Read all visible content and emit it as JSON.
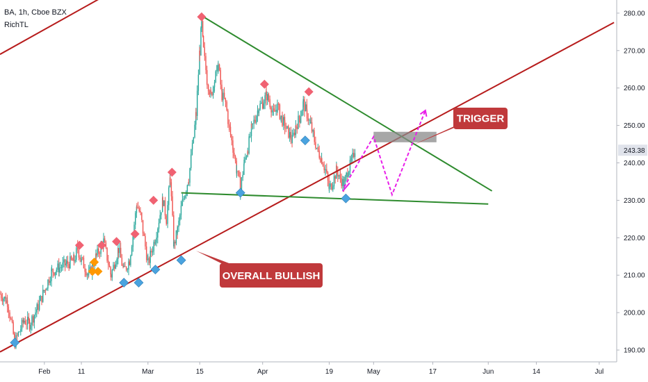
{
  "header": {
    "symbol_line": "BA, 1h, Cboe BZX",
    "indicator": "RichTL"
  },
  "colors": {
    "up": "#26a69a",
    "down": "#ef5350",
    "red_line": "#b71c1c",
    "green_line": "#2e8b2e",
    "magenta": "#e91ee9",
    "pivot_high": "#f06272",
    "pivot_low": "#4aa3df",
    "pivot_mid": "#ff9800",
    "callout": "#c0393b",
    "zone": "#8a8a8a"
  },
  "chart_data": {
    "type": "candlestick",
    "instrument": "BA",
    "interval": "1h",
    "exchange": "Cboe BZX",
    "y_axis": {
      "ticks": [
        190,
        200,
        210,
        220,
        230,
        240,
        250,
        260,
        270,
        280
      ],
      "ylim": [
        187.5,
        284
      ],
      "labels": [
        "190.00",
        "200.00",
        "210.00",
        "220.00",
        "230.00",
        "240.00",
        "250.00",
        "260.00",
        "270.00",
        "280.00"
      ]
    },
    "x_axis": {
      "labels": [
        "Feb",
        "11",
        "Mar",
        "15",
        "Apr",
        "19",
        "May",
        "17",
        "Jun",
        "14",
        "Jul"
      ],
      "label_days": [
        32,
        42,
        60,
        74,
        91,
        109,
        121,
        137,
        152,
        165,
        182
      ],
      "xlim": [
        20,
        186
      ]
    },
    "last_price": {
      "value": 243.38,
      "label": "243.38"
    },
    "price_path": [
      [
        20.0,
        205
      ],
      [
        22.0,
        203
      ],
      [
        24.0,
        192
      ],
      [
        26.5,
        198
      ],
      [
        28.0,
        197
      ],
      [
        30.0,
        201
      ],
      [
        32.0,
        206
      ],
      [
        34.0,
        211
      ],
      [
        36.0,
        212
      ],
      [
        38.0,
        213
      ],
      [
        40.0,
        214
      ],
      [
        41.0,
        217
      ],
      [
        42.0,
        214
      ],
      [
        44.0,
        210
      ],
      [
        46.0,
        215
      ],
      [
        48.0,
        219
      ],
      [
        50.0,
        210
      ],
      [
        52.0,
        217
      ],
      [
        53.5,
        211
      ],
      [
        55.0,
        214
      ],
      [
        57.0,
        229
      ],
      [
        58.0,
        226
      ],
      [
        60.0,
        213
      ],
      [
        62.0,
        220
      ],
      [
        64.0,
        230
      ],
      [
        65.0,
        225
      ],
      [
        66.0,
        236
      ],
      [
        67.0,
        218
      ],
      [
        68.0,
        222
      ],
      [
        69.0,
        228
      ],
      [
        70.0,
        232
      ],
      [
        71.0,
        236
      ],
      [
        72.0,
        244
      ],
      [
        73.0,
        253
      ],
      [
        74.0,
        270
      ],
      [
        74.5,
        277
      ],
      [
        75.0,
        270
      ],
      [
        76.0,
        262
      ],
      [
        77.0,
        258
      ],
      [
        78.0,
        262
      ],
      [
        79.0,
        266
      ],
      [
        80.0,
        258
      ],
      [
        81.0,
        256
      ],
      [
        82.0,
        249
      ],
      [
        83.0,
        244
      ],
      [
        84.0,
        238
      ],
      [
        85.0,
        233
      ],
      [
        86.0,
        240
      ],
      [
        87.0,
        244
      ],
      [
        88.0,
        249
      ],
      [
        89.0,
        252
      ],
      [
        90.0,
        255
      ],
      [
        91.0,
        256
      ],
      [
        92.0,
        258
      ],
      [
        93.0,
        256
      ],
      [
        94.0,
        253
      ],
      [
        95.0,
        255
      ],
      [
        96.0,
        252
      ],
      [
        97.0,
        250
      ],
      [
        98.0,
        248
      ],
      [
        99.0,
        246
      ],
      [
        100.0,
        250
      ],
      [
        101.0,
        252
      ],
      [
        102.0,
        256
      ],
      [
        103.0,
        253
      ],
      [
        104.0,
        250
      ],
      [
        105.0,
        246
      ],
      [
        106.0,
        243
      ],
      [
        107.0,
        241
      ],
      [
        108.0,
        238
      ],
      [
        109.0,
        233
      ],
      [
        110.0,
        235
      ],
      [
        111.0,
        238
      ],
      [
        112.0,
        236
      ],
      [
        113.0,
        234
      ],
      [
        114.0,
        238
      ],
      [
        115.0,
        240
      ],
      [
        116.0,
        244
      ]
    ],
    "pivots": [
      {
        "kind": "high",
        "day": 74.5,
        "price": 279
      },
      {
        "kind": "high",
        "day": 91.5,
        "price": 261
      },
      {
        "kind": "high",
        "day": 103.5,
        "price": 259
      },
      {
        "kind": "high",
        "day": 66.5,
        "price": 237.5
      },
      {
        "kind": "high",
        "day": 61.5,
        "price": 230
      },
      {
        "kind": "high",
        "day": 56.5,
        "price": 221
      },
      {
        "kind": "high",
        "day": 51.5,
        "price": 219
      },
      {
        "kind": "high",
        "day": 47.5,
        "price": 218
      },
      {
        "kind": "high",
        "day": 41.5,
        "price": 218
      },
      {
        "kind": "low",
        "day": 24.0,
        "price": 192
      },
      {
        "kind": "low",
        "day": 53.5,
        "price": 208
      },
      {
        "kind": "low",
        "day": 57.5,
        "price": 208
      },
      {
        "kind": "low",
        "day": 62.0,
        "price": 211.5
      },
      {
        "kind": "low",
        "day": 69.0,
        "price": 214
      },
      {
        "kind": "low",
        "day": 85.0,
        "price": 232
      },
      {
        "kind": "low",
        "day": 102.5,
        "price": 246
      },
      {
        "kind": "low",
        "day": 113.5,
        "price": 230.5
      },
      {
        "kind": "mid",
        "day": 45.5,
        "price": 213.5
      },
      {
        "kind": "mid",
        "day": 45.0,
        "price": 211
      },
      {
        "kind": "mid",
        "day": 46.5,
        "price": 211
      }
    ],
    "trendlines": [
      {
        "name": "upper_red_channel",
        "color": "red",
        "points": [
          [
            20,
            269
          ],
          [
            49,
            285
          ]
        ]
      },
      {
        "name": "overall_bullish_support",
        "color": "red",
        "points": [
          [
            20,
            189.5
          ],
          [
            186,
            277.5
          ]
        ]
      },
      {
        "name": "descending_resistance",
        "color": "green",
        "points": [
          [
            75,
            279
          ],
          [
            153,
            232.5
          ]
        ]
      },
      {
        "name": "neckline_support",
        "color": "green",
        "points": [
          [
            69,
            232
          ],
          [
            152,
            229
          ]
        ]
      }
    ],
    "projection_path": [
      [
        113,
        233.5
      ],
      [
        121,
        247
      ],
      [
        126,
        231.5
      ],
      [
        131,
        244
      ],
      [
        135,
        254
      ]
    ],
    "trigger_zone": {
      "x": [
        121,
        138
      ],
      "price": [
        245.5,
        248.3
      ]
    },
    "annotations": [
      {
        "text": "TRIGGER",
        "anchor": [
          131,
          244.5
        ]
      },
      {
        "text": "OVERALL BULLISH",
        "anchor": [
          73,
          216.5
        ]
      }
    ]
  }
}
